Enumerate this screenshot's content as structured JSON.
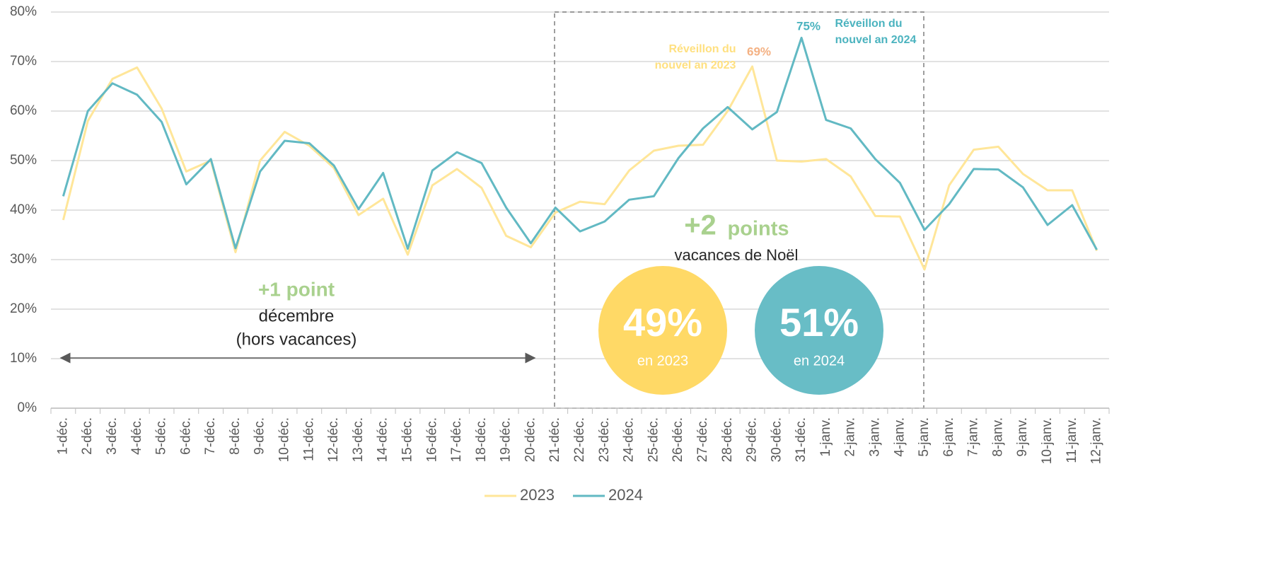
{
  "chart_data": {
    "type": "line",
    "categories": [
      "1-déc.",
      "2-déc.",
      "3-déc.",
      "4-déc.",
      "5-déc.",
      "6-déc.",
      "7-déc.",
      "8-déc.",
      "9-déc.",
      "10-déc.",
      "11-déc.",
      "12-déc.",
      "13-déc.",
      "14-déc.",
      "15-déc.",
      "16-déc.",
      "17-déc.",
      "18-déc.",
      "19-déc.",
      "20-déc.",
      "21-déc.",
      "22-déc.",
      "23-déc.",
      "24-déc.",
      "25-déc.",
      "26-déc.",
      "27-déc.",
      "28-déc.",
      "29-déc.",
      "30-déc.",
      "31-déc.",
      "1-janv.",
      "2-janv.",
      "3-janv.",
      "4-janv.",
      "5-janv.",
      "6-janv.",
      "7-janv.",
      "8-janv.",
      "9-janv.",
      "10-janv.",
      "11-janv.",
      "12-janv."
    ],
    "series": [
      {
        "name": "2023",
        "color": "#ffe699",
        "values": [
          38,
          58,
          66.5,
          68.8,
          60.5,
          47.8,
          50,
          31.5,
          50,
          55.8,
          53,
          48.5,
          39,
          42.3,
          31,
          45,
          48.3,
          44.5,
          34.8,
          32.5,
          39.5,
          41.7,
          41.2,
          48,
          52,
          53,
          53.2,
          60,
          69,
          50,
          49.8,
          50.3,
          46.8,
          38.8,
          38.7,
          28,
          45,
          52.2,
          52.8,
          47.3,
          44,
          44,
          31.8
        ]
      },
      {
        "name": "2024",
        "color": "#62b9c3",
        "values": [
          42.8,
          60,
          65.6,
          63.3,
          57.8,
          45.2,
          50.3,
          32.3,
          47.8,
          54,
          53.5,
          49,
          40.2,
          47.5,
          32.2,
          48,
          51.7,
          49.5,
          40.5,
          33.3,
          40.5,
          35.7,
          37.7,
          42.1,
          42.8,
          50.5,
          56.5,
          60.8,
          56.3,
          59.8,
          74.8,
          58.2,
          56.5,
          50.3,
          45.5,
          36,
          41.2,
          48.3,
          48.2,
          44.6,
          37,
          41,
          32
        ]
      }
    ],
    "ylim": [
      0,
      80
    ],
    "yticks": [
      {
        "value": 0,
        "label": "0%"
      },
      {
        "value": 10,
        "label": "10%"
      },
      {
        "value": 20,
        "label": "20%"
      },
      {
        "value": 30,
        "label": "30%"
      },
      {
        "value": 40,
        "label": "40%"
      },
      {
        "value": 50,
        "label": "50%"
      },
      {
        "value": 60,
        "label": "60%"
      },
      {
        "value": 70,
        "label": "70%"
      },
      {
        "value": 80,
        "label": "80%"
      }
    ],
    "grid": true,
    "annotations": {
      "dec_big": "+1 point",
      "dec_line1": "décembre",
      "dec_line2": "(hors vacances)",
      "noel_big": "+2",
      "noel_small": "points",
      "noel_label": "vacances de Noël",
      "c2023_value": "49%",
      "c2023_label": "en 2023",
      "c2024_value": "51%",
      "c2024_label": "en 2024",
      "rev2023_line1": "Réveillon du",
      "rev2023_line2": "nouvel an 2023",
      "rev2023_value": "69%",
      "rev2024_line1": "Réveillon du",
      "rev2024_line2": "nouvel an 2024",
      "rev2024_value": "75%"
    }
  }
}
